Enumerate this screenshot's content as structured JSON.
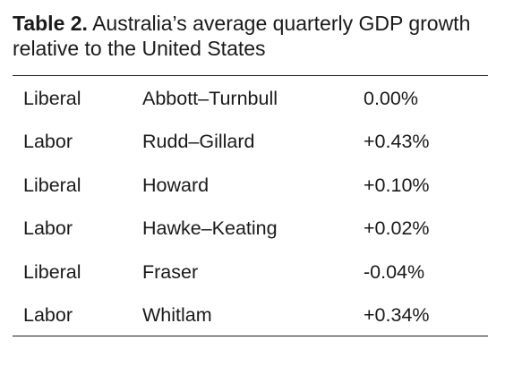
{
  "table": {
    "caption_label": "Table 2.",
    "caption_text": "Australia’s average quarterly GDP growth relative to the United States",
    "rows": [
      {
        "party": "Liberal",
        "government": "Abbott–Turnbull",
        "growth": "0.00%"
      },
      {
        "party": "Labor",
        "government": "Rudd–Gillard",
        "growth": "+0.43%"
      },
      {
        "party": "Liberal",
        "government": "Howard",
        "growth": "+0.10%"
      },
      {
        "party": "Labor",
        "government": "Hawke–Keating",
        "growth": "+0.02%"
      },
      {
        "party": "Liberal",
        "government": "Fraser",
        "growth": "-0.04%"
      },
      {
        "party": "Labor",
        "government": "Whitlam",
        "growth": "+0.34%"
      }
    ]
  }
}
